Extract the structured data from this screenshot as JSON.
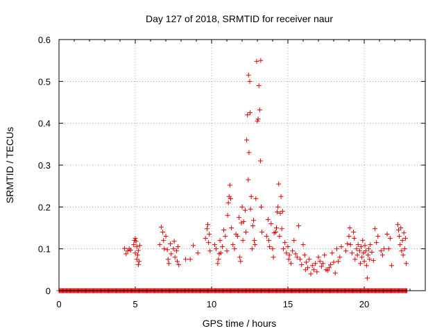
{
  "chart_data": {
    "type": "scatter",
    "title": "Day 127 of 2018, SRMTID for receiver naur",
    "xlabel": "GPS time / hours",
    "ylabel": "SRMTID / TECUs",
    "xlim": [
      0,
      24
    ],
    "ylim": [
      0,
      0.6
    ],
    "xticks": [
      0,
      5,
      10,
      15,
      20
    ],
    "yticks": [
      0,
      0.1,
      0.2,
      0.3,
      0.4,
      0.5,
      0.6
    ],
    "xtick_labels": [
      "0",
      "5",
      "10",
      "15",
      "20"
    ],
    "ytick_labels": [
      "0",
      "0.1",
      "0.2",
      "0.3",
      "0.4",
      "0.5",
      "0.6"
    ],
    "grid": true,
    "marker": "+",
    "color": "#e00000",
    "series": [
      {
        "name": "SRMTID",
        "points": [
          [
            4.3,
            0.101
          ],
          [
            4.4,
            0.088
          ],
          [
            4.5,
            0.095
          ],
          [
            4.6,
            0.1
          ],
          [
            4.7,
            0.097
          ],
          [
            4.9,
            0.11
          ],
          [
            4.95,
            0.12
          ],
          [
            5.0,
            0.125
          ],
          [
            5.0,
            0.09
          ],
          [
            5.05,
            0.118
          ],
          [
            5.1,
            0.105
          ],
          [
            5.1,
            0.075
          ],
          [
            5.15,
            0.085
          ],
          [
            5.2,
            0.062
          ],
          [
            5.2,
            0.096
          ],
          [
            5.25,
            0.07
          ],
          [
            5.3,
            0.108
          ],
          [
            6.6,
            0.11
          ],
          [
            6.7,
            0.152
          ],
          [
            6.8,
            0.14
          ],
          [
            6.85,
            0.12
          ],
          [
            6.9,
            0.1
          ],
          [
            7.0,
            0.13
          ],
          [
            7.1,
            0.098
          ],
          [
            7.15,
            0.075
          ],
          [
            7.2,
            0.065
          ],
          [
            7.3,
            0.112
          ],
          [
            7.35,
            0.088
          ],
          [
            7.5,
            0.1
          ],
          [
            7.55,
            0.118
          ],
          [
            7.6,
            0.08
          ],
          [
            7.7,
            0.095
          ],
          [
            7.75,
            0.07
          ],
          [
            7.8,
            0.105
          ],
          [
            7.85,
            0.062
          ],
          [
            8.3,
            0.075
          ],
          [
            8.6,
            0.075
          ],
          [
            8.8,
            0.108
          ],
          [
            9.1,
            0.09
          ],
          [
            9.6,
            0.125
          ],
          [
            9.7,
            0.148
          ],
          [
            9.75,
            0.158
          ],
          [
            9.8,
            0.115
          ],
          [
            9.85,
            0.135
          ],
          [
            9.9,
            0.095
          ],
          [
            10.2,
            0.11
          ],
          [
            10.3,
            0.1
          ],
          [
            10.4,
            0.065
          ],
          [
            10.45,
            0.075
          ],
          [
            10.5,
            0.088
          ],
          [
            10.55,
            0.12
          ],
          [
            10.6,
            0.09
          ],
          [
            10.7,
            0.105
          ],
          [
            10.8,
            0.145
          ],
          [
            10.9,
            0.13
          ],
          [
            11.0,
            0.095
          ],
          [
            11.05,
            0.18
          ],
          [
            11.1,
            0.21
          ],
          [
            11.15,
            0.225
          ],
          [
            11.2,
            0.252
          ],
          [
            11.25,
            0.22
          ],
          [
            11.3,
            0.15
          ],
          [
            11.4,
            0.11
          ],
          [
            11.5,
            0.1
          ],
          [
            11.6,
            0.135
          ],
          [
            11.7,
            0.13
          ],
          [
            11.8,
            0.175
          ],
          [
            11.85,
            0.08
          ],
          [
            11.9,
            0.07
          ],
          [
            11.95,
            0.162
          ],
          [
            12.0,
            0.2
          ],
          [
            12.05,
            0.12
          ],
          [
            12.1,
            0.165
          ],
          [
            12.2,
            0.192
          ],
          [
            12.25,
            0.14
          ],
          [
            12.3,
            0.36
          ],
          [
            12.35,
            0.42
          ],
          [
            12.4,
            0.265
          ],
          [
            12.42,
            0.515
          ],
          [
            12.45,
            0.33
          ],
          [
            12.5,
            0.5
          ],
          [
            12.52,
            0.425
          ],
          [
            12.55,
            0.195
          ],
          [
            12.6,
            0.225
          ],
          [
            12.65,
            0.1
          ],
          [
            12.7,
            0.155
          ],
          [
            12.75,
            0.168
          ],
          [
            12.8,
            0.12
          ],
          [
            12.85,
            0.11
          ],
          [
            12.9,
            0.22
          ],
          [
            12.95,
            0.548
          ],
          [
            13.0,
            0.405
          ],
          [
            13.05,
            0.41
          ],
          [
            13.1,
            0.49
          ],
          [
            13.15,
            0.432
          ],
          [
            13.2,
            0.31
          ],
          [
            13.22,
            0.55
          ],
          [
            13.25,
            0.2
          ],
          [
            13.3,
            0.14
          ],
          [
            13.6,
            0.13
          ],
          [
            13.7,
            0.17
          ],
          [
            13.75,
            0.12
          ],
          [
            13.8,
            0.105
          ],
          [
            13.9,
            0.16
          ],
          [
            14.0,
            0.1
          ],
          [
            14.05,
            0.08
          ],
          [
            14.1,
            0.138
          ],
          [
            14.2,
            0.14
          ],
          [
            14.25,
            0.15
          ],
          [
            14.3,
            0.188
          ],
          [
            14.35,
            0.2
          ],
          [
            14.4,
            0.255
          ],
          [
            14.45,
            0.13
          ],
          [
            14.5,
            0.185
          ],
          [
            14.55,
            0.225
          ],
          [
            14.6,
            0.148
          ],
          [
            14.65,
            0.19
          ],
          [
            14.7,
            0.1
          ],
          [
            14.8,
            0.115
          ],
          [
            14.9,
            0.09
          ],
          [
            15.0,
            0.105
          ],
          [
            15.05,
            0.075
          ],
          [
            15.1,
            0.085
          ],
          [
            15.2,
            0.065
          ],
          [
            15.3,
            0.095
          ],
          [
            15.4,
            0.12
          ],
          [
            15.5,
            0.088
          ],
          [
            15.6,
            0.08
          ],
          [
            15.7,
            0.155
          ],
          [
            15.8,
            0.075
          ],
          [
            15.9,
            0.062
          ],
          [
            16.0,
            0.11
          ],
          [
            16.1,
            0.085
          ],
          [
            16.15,
            0.05
          ],
          [
            16.2,
            0.068
          ],
          [
            16.3,
            0.055
          ],
          [
            16.4,
            0.075
          ],
          [
            16.5,
            0.04
          ],
          [
            16.6,
            0.06
          ],
          [
            16.7,
            0.05
          ],
          [
            16.8,
            0.065
          ],
          [
            16.9,
            0.045
          ],
          [
            17.0,
            0.08
          ],
          [
            17.1,
            0.07
          ],
          [
            17.2,
            0.058
          ],
          [
            17.3,
            0.065
          ],
          [
            17.4,
            0.085
          ],
          [
            17.5,
            0.05
          ],
          [
            17.6,
            0.048
          ],
          [
            17.7,
            0.055
          ],
          [
            17.8,
            0.062
          ],
          [
            17.9,
            0.09
          ],
          [
            18.0,
            0.068
          ],
          [
            18.1,
            0.042
          ],
          [
            18.2,
            0.1
          ],
          [
            18.3,
            0.07
          ],
          [
            18.4,
            0.08
          ],
          [
            18.5,
            0.105
          ],
          [
            18.8,
            0.095
          ],
          [
            18.9,
            0.112
          ],
          [
            19.0,
            0.13
          ],
          [
            19.05,
            0.15
          ],
          [
            19.1,
            0.11
          ],
          [
            19.2,
            0.09
          ],
          [
            19.3,
            0.14
          ],
          [
            19.35,
            0.125
          ],
          [
            19.4,
            0.075
          ],
          [
            19.5,
            0.1
          ],
          [
            19.55,
            0.085
          ],
          [
            19.6,
            0.11
          ],
          [
            19.7,
            0.095
          ],
          [
            19.75,
            0.065
          ],
          [
            19.8,
            0.105
          ],
          [
            19.85,
            0.08
          ],
          [
            19.9,
            0.12
          ],
          [
            19.95,
            0.09
          ],
          [
            20.0,
            0.07
          ],
          [
            20.05,
            0.108
          ],
          [
            20.1,
            0.095
          ],
          [
            20.15,
            0.06
          ],
          [
            20.2,
            0.03
          ],
          [
            20.25,
            0.085
          ],
          [
            20.3,
            0.1
          ],
          [
            20.35,
            0.075
          ],
          [
            20.4,
            0.11
          ],
          [
            20.5,
            0.092
          ],
          [
            20.6,
            0.072
          ],
          [
            20.7,
            0.148
          ],
          [
            20.8,
            0.115
          ],
          [
            20.9,
            0.13
          ],
          [
            21.1,
            0.095
          ],
          [
            21.2,
            0.085
          ],
          [
            21.3,
            0.1
          ],
          [
            21.5,
            0.135
          ],
          [
            21.6,
            0.1
          ],
          [
            21.7,
            0.125
          ],
          [
            21.8,
            0.06
          ],
          [
            22.2,
            0.158
          ],
          [
            22.25,
            0.145
          ],
          [
            22.3,
            0.13
          ],
          [
            22.35,
            0.11
          ],
          [
            22.4,
            0.15
          ],
          [
            22.45,
            0.095
          ],
          [
            22.5,
            0.12
          ],
          [
            22.55,
            0.085
          ],
          [
            22.6,
            0.138
          ],
          [
            22.65,
            0.1
          ],
          [
            22.7,
            0.125
          ],
          [
            22.75,
            0.065
          ]
        ]
      }
    ],
    "zero_band": [
      0.0,
      22.8
    ]
  }
}
